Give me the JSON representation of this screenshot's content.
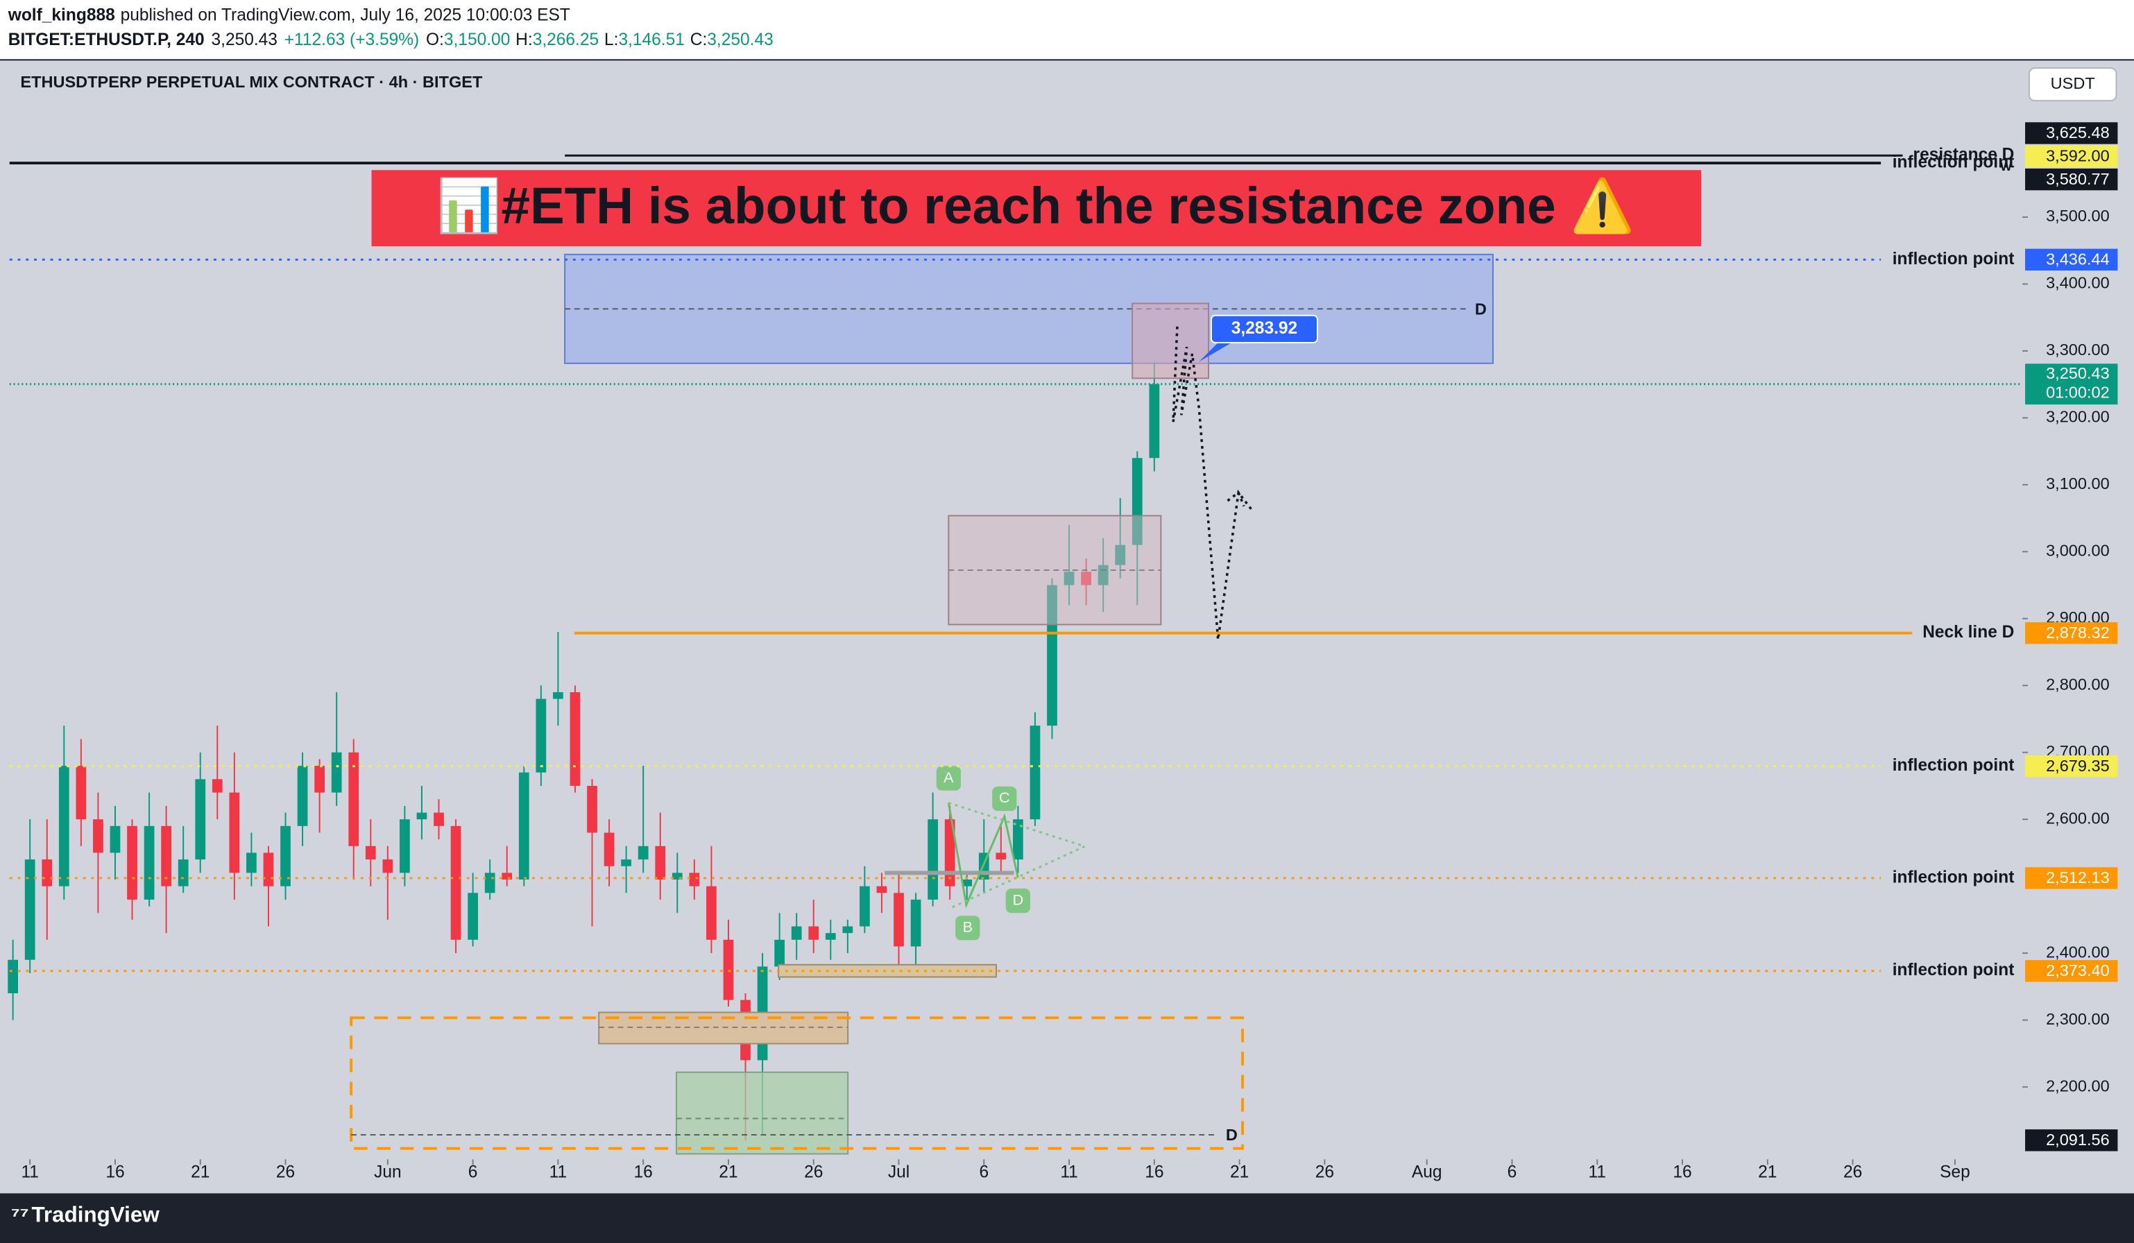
{
  "header": {
    "author": "wolf_king888",
    "published": "published on TradingView.com, July 16, 2025 10:00:03 EST",
    "symbol": "BITGET:ETHUSDT.P, 240",
    "last": "3,250.43",
    "change": "+112.63 (+3.59%)",
    "o_key": "O:",
    "o": "3,150.00",
    "h_key": "H:",
    "h": "3,266.25",
    "l_key": "L:",
    "l": "3,146.51",
    "c_key": "C:",
    "c": "3,250.43",
    "instrument": "ETHUSDTPERP PERPETUAL MIX CONTRACT · 4h · BITGET",
    "currency": "USDT",
    "brand": "TradingView"
  },
  "chart_data": {
    "type": "candlestick",
    "title": "📊#ETH is about to reach the resistance zone ⚠️",
    "x": [
      "May 10",
      "May 11",
      "May 12",
      "May 13",
      "May 14",
      "May 15",
      "May 16",
      "May 17",
      "May 18",
      "May 19",
      "May 20",
      "May 21",
      "May 22",
      "May 23",
      "May 24",
      "May 25",
      "May 26",
      "May 27",
      "May 28",
      "May 29",
      "May 30",
      "May 31",
      "Jun 1",
      "Jun 2",
      "Jun 3",
      "Jun 4",
      "Jun 5",
      "Jun 6",
      "Jun 7",
      "Jun 8",
      "Jun 9",
      "Jun 10",
      "Jun 11",
      "Jun 12",
      "Jun 13",
      "Jun 14",
      "Jun 15",
      "Jun 16",
      "Jun 17",
      "Jun 18",
      "Jun 19",
      "Jun 20",
      "Jun 21",
      "Jun 22",
      "Jun 23",
      "Jun 24",
      "Jun 25",
      "Jun 26",
      "Jun 27",
      "Jun 28",
      "Jun 29",
      "Jun 30",
      "Jul 1",
      "Jul 2",
      "Jul 3",
      "Jul 4",
      "Jul 5",
      "Jul 6",
      "Jul 7",
      "Jul 8",
      "Jul 9",
      "Jul 10",
      "Jul 11",
      "Jul 12",
      "Jul 13",
      "Jul 14",
      "Jul 15",
      "Jul 16"
    ],
    "open": [
      2340,
      2390,
      2540,
      2500,
      2680,
      2600,
      2550,
      2590,
      2480,
      2590,
      2500,
      2540,
      2660,
      2640,
      2520,
      2550,
      2500,
      2590,
      2680,
      2640,
      2700,
      2560,
      2540,
      2520,
      2600,
      2610,
      2590,
      2420,
      2490,
      2520,
      2510,
      2670,
      2780,
      2790,
      2650,
      2580,
      2530,
      2540,
      2560,
      2510,
      2520,
      2500,
      2420,
      2330,
      2240,
      2380,
      2420,
      2440,
      2420,
      2430,
      2440,
      2500,
      2490,
      2410,
      2480,
      2600,
      2500,
      2510,
      2550,
      2540,
      2600,
      2740,
      2950,
      2970,
      2950,
      2980,
      3010,
      3140
    ],
    "high": [
      2420,
      2600,
      2600,
      2740,
      2720,
      2640,
      2620,
      2600,
      2640,
      2620,
      2590,
      2700,
      2740,
      2700,
      2580,
      2560,
      2610,
      2700,
      2690,
      2790,
      2720,
      2600,
      2560,
      2620,
      2650,
      2630,
      2600,
      2520,
      2540,
      2560,
      2680,
      2800,
      2880,
      2800,
      2660,
      2600,
      2560,
      2680,
      2610,
      2550,
      2540,
      2560,
      2450,
      2340,
      2400,
      2460,
      2460,
      2480,
      2450,
      2450,
      2530,
      2520,
      2520,
      2490,
      2640,
      2620,
      2520,
      2600,
      2590,
      2620,
      2760,
      2960,
      3040,
      2990,
      3020,
      3080,
      3150,
      3284
    ],
    "low": [
      2300,
      2370,
      2420,
      2480,
      2560,
      2460,
      2510,
      2450,
      2470,
      2430,
      2490,
      2520,
      2600,
      2480,
      2500,
      2440,
      2480,
      2560,
      2580,
      2620,
      2510,
      2500,
      2450,
      2500,
      2570,
      2570,
      2400,
      2410,
      2480,
      2500,
      2500,
      2650,
      2740,
      2640,
      2440,
      2500,
      2490,
      2520,
      2480,
      2460,
      2480,
      2400,
      2320,
      2120,
      2130,
      2360,
      2390,
      2400,
      2390,
      2400,
      2430,
      2460,
      2380,
      2370,
      2470,
      2480,
      2480,
      2490,
      2520,
      2520,
      2590,
      2720,
      2920,
      2920,
      2910,
      2960,
      2920,
      3120
    ],
    "close": [
      2390,
      2540,
      2500,
      2680,
      2600,
      2550,
      2590,
      2480,
      2590,
      2500,
      2540,
      2660,
      2640,
      2520,
      2550,
      2500,
      2590,
      2680,
      2640,
      2700,
      2560,
      2540,
      2520,
      2600,
      2610,
      2590,
      2420,
      2490,
      2520,
      2510,
      2670,
      2780,
      2790,
      2650,
      2580,
      2530,
      2540,
      2560,
      2510,
      2520,
      2500,
      2420,
      2330,
      2240,
      2380,
      2420,
      2440,
      2420,
      2430,
      2440,
      2500,
      2490,
      2410,
      2480,
      2600,
      2500,
      2510,
      2550,
      2540,
      2600,
      2740,
      2950,
      2970,
      2950,
      2980,
      3010,
      3140,
      3250.43
    ],
    "up_color": "#089981",
    "down_color": "#f23645",
    "xlim": [
      "May 10",
      "Sep 4"
    ],
    "xticks": [
      {
        "value": "May 11",
        "label": "11"
      },
      {
        "value": "May 16",
        "label": "16"
      },
      {
        "value": "May 21",
        "label": "21"
      },
      {
        "value": "May 26",
        "label": "26"
      },
      {
        "value": "Jun 1",
        "label": "Jun"
      },
      {
        "value": "Jun 6",
        "label": "6"
      },
      {
        "value": "Jun 11",
        "label": "11"
      },
      {
        "value": "Jun 16",
        "label": "16"
      },
      {
        "value": "Jun 21",
        "label": "21"
      },
      {
        "value": "Jun 26",
        "label": "26"
      },
      {
        "value": "Jul 1",
        "label": "Jul"
      },
      {
        "value": "Jul 6",
        "label": "6"
      },
      {
        "value": "Jul 11",
        "label": "11"
      },
      {
        "value": "Jul 16",
        "label": "16"
      },
      {
        "value": "Jul 21",
        "label": "21"
      },
      {
        "value": "Jul 26",
        "label": "26"
      },
      {
        "value": "Aug 1",
        "label": "Aug"
      },
      {
        "value": "Aug 6",
        "label": "6"
      },
      {
        "value": "Aug 11",
        "label": "11"
      },
      {
        "value": "Aug 16",
        "label": "16"
      },
      {
        "value": "Aug 21",
        "label": "21"
      },
      {
        "value": "Aug 26",
        "label": "26"
      },
      {
        "value": "Sep 1",
        "label": "Sep"
      }
    ],
    "ylim": [
      2100,
      3735
    ],
    "yticks": [
      {
        "value": 2200,
        "label": "2,200.00"
      },
      {
        "value": 2300,
        "label": "2,300.00"
      },
      {
        "value": 2400,
        "label": "2,400.00"
      },
      {
        "value": 2600,
        "label": "2,600.00"
      },
      {
        "value": 2700,
        "label": "2,700.00"
      },
      {
        "value": 2800,
        "label": "2,800.00"
      },
      {
        "value": 2900,
        "label": "2,900.00"
      },
      {
        "value": 3000,
        "label": "3,000.00"
      },
      {
        "value": 3100,
        "label": "3,100.00"
      },
      {
        "value": 3200,
        "label": "3,200.00"
      },
      {
        "value": 3300,
        "label": "3,300.00"
      },
      {
        "value": 3400,
        "label": "3,400.00"
      },
      {
        "value": 3500,
        "label": "3,500.00"
      }
    ],
    "levels": [
      {
        "value": 3625.48,
        "label": "3,625.48",
        "color": "#131722"
      },
      {
        "value": 3592,
        "label": "3,592.00",
        "name": "resistance D",
        "color": "#f5ee52"
      },
      {
        "value": 3580.77,
        "label": "3,580.77",
        "name": "inflection point",
        "color": "#131722"
      },
      {
        "value": 3436.44,
        "label": "3,436.44",
        "name": "inflection point",
        "color": "#2962ff"
      },
      {
        "value": 3250.43,
        "label": "3,250.43",
        "countdown": "01:00:02",
        "color": "#089981"
      },
      {
        "value": 2878.32,
        "label": "2,878.32",
        "name": "Neck line D",
        "color": "#ff9800"
      },
      {
        "value": 2679.35,
        "label": "2,679.35",
        "name": "inflection point",
        "color": "#f5ee52"
      },
      {
        "value": 2512.13,
        "label": "2,512.13",
        "name": "inflection point",
        "color": "#ff9800"
      },
      {
        "value": 2373.4,
        "label": "2,373.40",
        "name": "inflection point",
        "color": "#ff9800"
      },
      {
        "value": 2091.56,
        "label": "2,091.56",
        "color": "#131722"
      }
    ],
    "callout": {
      "value": 3283.92,
      "label": "3,283.92"
    },
    "pattern_labels": [
      "A",
      "B",
      "C",
      "D"
    ],
    "zone_labels": [
      "D",
      "D"
    ],
    "w_label": "W"
  }
}
